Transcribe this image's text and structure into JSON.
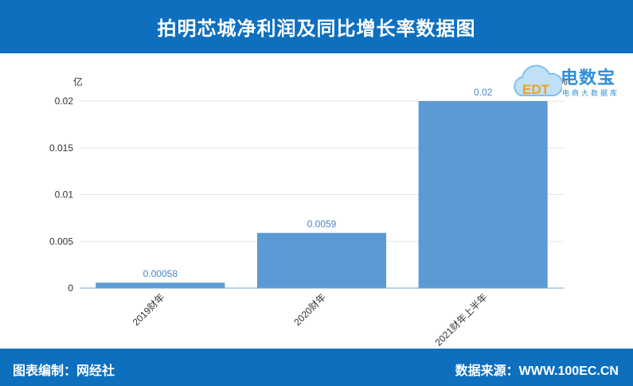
{
  "header": {
    "title": "拍明芯城净利润及同比增长率数据图"
  },
  "logo": {
    "brand": "电数宝",
    "sub": "电商大数据库",
    "mark_text": "EDT"
  },
  "footer": {
    "left": "图表编制：网经社",
    "right": "数据来源：WWW.100EC.CN"
  },
  "colors": {
    "bar": "#5b9bd5",
    "header": "#0e6fbf",
    "label": "#4a86c5"
  },
  "chart_data": {
    "type": "bar",
    "categories": [
      "2019财年",
      "2020财年",
      "2021财年上半年"
    ],
    "values": [
      0.00058,
      0.0059,
      0.02
    ],
    "data_labels": [
      "0.00058",
      "0.0059",
      "0.02"
    ],
    "y_ticks": [
      "0",
      "0.005",
      "0.01",
      "0.015",
      "0.02"
    ],
    "y_tick_values": [
      0,
      0.005,
      0.01,
      0.015,
      0.02
    ],
    "ylabel": "亿",
    "y2label": "%",
    "ylim": [
      0,
      0.02
    ],
    "grid": true
  }
}
